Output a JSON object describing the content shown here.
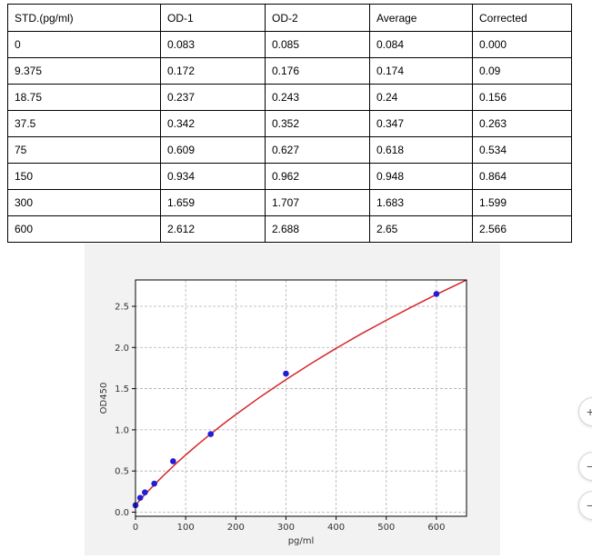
{
  "table": {
    "headers": [
      "STD.(pg/ml)",
      "OD-1",
      "OD-2",
      "Average",
      "Corrected"
    ],
    "rows": [
      [
        "0",
        "0.083",
        "0.085",
        "0.084",
        "0.000"
      ],
      [
        "9.375",
        "0.172",
        "0.176",
        "0.174",
        "0.09"
      ],
      [
        "18.75",
        "0.237",
        "0.243",
        "0.24",
        "0.156"
      ],
      [
        "37.5",
        "0.342",
        "0.352",
        "0.347",
        "0.263"
      ],
      [
        "75",
        "0.609",
        "0.627",
        "0.618",
        "0.534"
      ],
      [
        "150",
        "0.934",
        "0.962",
        "0.948",
        "0.864"
      ],
      [
        "300",
        "1.659",
        "1.707",
        "1.683",
        "1.599"
      ],
      [
        "600",
        "2.612",
        "2.688",
        "2.65",
        "2.566"
      ]
    ]
  },
  "chart_data": {
    "type": "scatter",
    "title": "",
    "xlabel": "pg/ml",
    "ylabel": "OD450",
    "xlim": [
      0,
      660
    ],
    "ylim": [
      -0.05,
      2.82
    ],
    "xticks": [
      0,
      100,
      200,
      300,
      400,
      500,
      600
    ],
    "yticks": [
      0.0,
      0.5,
      1.0,
      1.5,
      2.0,
      2.5
    ],
    "ytick_labels": [
      "0.0",
      "0.5",
      "1.0",
      "1.5",
      "2.0",
      "2.5"
    ],
    "grid": true,
    "points": {
      "x": [
        0,
        9.375,
        18.75,
        37.5,
        75,
        150,
        300,
        600
      ],
      "y": [
        0.084,
        0.174,
        0.24,
        0.347,
        0.618,
        0.948,
        1.683,
        2.65
      ],
      "color": "#1f1fd6"
    },
    "fit_curve": {
      "x": [
        0,
        10,
        20,
        40,
        60,
        80,
        100,
        125,
        150,
        175,
        200,
        250,
        300,
        350,
        400,
        450,
        500,
        550,
        600,
        650,
        660
      ],
      "y": [
        0.084,
        0.155,
        0.222,
        0.35,
        0.47,
        0.585,
        0.695,
        0.825,
        0.95,
        1.07,
        1.185,
        1.405,
        1.61,
        1.805,
        1.99,
        2.165,
        2.33,
        2.49,
        2.645,
        2.79,
        2.82
      ],
      "color": "#d62728"
    }
  },
  "side_buttons": [
    {
      "icon": "plus-icon",
      "glyph": "+"
    },
    {
      "icon": "minus-icon",
      "glyph": "−"
    },
    {
      "icon": "minus-icon",
      "glyph": "−"
    }
  ]
}
